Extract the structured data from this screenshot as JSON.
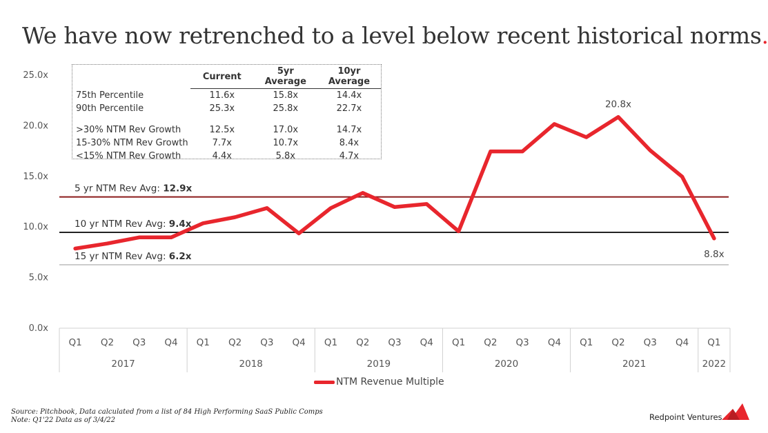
{
  "title": "We have now retrenched to a level below recent historical norms",
  "title_dot": ".",
  "stats_table": {
    "headers": [
      "Current",
      "5yr Average",
      "10yr Average"
    ],
    "rows": [
      {
        "label": "75th Percentile",
        "values": [
          "11.6x",
          "15.8x",
          "14.4x"
        ]
      },
      {
        "label": "90th Percentile",
        "values": [
          "25.3x",
          "25.8x",
          "22.7x"
        ]
      },
      {
        "label": ">30% NTM Rev Growth",
        "values": [
          "12.5x",
          "17.0x",
          "14.7x"
        ]
      },
      {
        "label": "15-30% NTM Rev Growth",
        "values": [
          "7.7x",
          "10.7x",
          "8.4x"
        ]
      },
      {
        "label": "<15% NTM Rev Growth",
        "values": [
          "4.4x",
          "5.8x",
          "4.7x"
        ]
      }
    ]
  },
  "chart_data": {
    "type": "line",
    "quarters": [
      "Q1",
      "Q2",
      "Q3",
      "Q4",
      "Q1",
      "Q2",
      "Q3",
      "Q4",
      "Q1",
      "Q2",
      "Q3",
      "Q4",
      "Q1",
      "Q2",
      "Q3",
      "Q4",
      "Q1",
      "Q2",
      "Q3",
      "Q4",
      "Q1"
    ],
    "years": [
      {
        "label": "2017",
        "count": 4
      },
      {
        "label": "2018",
        "count": 4
      },
      {
        "label": "2019",
        "count": 4
      },
      {
        "label": "2020",
        "count": 4
      },
      {
        "label": "2021",
        "count": 4
      },
      {
        "label": "2022",
        "count": 1
      }
    ],
    "series": [
      {
        "name": "NTM Revenue Multiple",
        "color": "#e8262d",
        "values": [
          7.8,
          8.3,
          8.9,
          8.9,
          10.3,
          10.9,
          11.8,
          9.3,
          11.8,
          13.3,
          11.9,
          12.2,
          9.5,
          17.4,
          17.4,
          20.1,
          18.8,
          20.8,
          17.5,
          14.9,
          8.8
        ]
      }
    ],
    "reference_lines": [
      {
        "label": "5 yr NTM Rev Avg: ",
        "value_label": "12.9x",
        "value": 12.9,
        "color": "#8b1a1a"
      },
      {
        "label": "10 yr NTM Rev Avg: ",
        "value_label": "9.4x",
        "value": 9.4,
        "color": "#222222"
      },
      {
        "label": "15 yr NTM Rev Avg: ",
        "value_label": "6.2x",
        "value": 6.2,
        "color": "#cccccc"
      }
    ],
    "annotations": [
      {
        "index": 17,
        "text": "20.8x"
      },
      {
        "index": 20,
        "text": "8.8x"
      }
    ],
    "yticks": [
      "0.0x",
      "5.0x",
      "10.0x",
      "15.0x",
      "20.0x",
      "25.0x"
    ],
    "ylim": [
      0,
      25
    ],
    "legend": "bottom-center"
  },
  "footnote": {
    "line1": "Source: Pitchbook, Data calculated from a list of 84 High Performing SaaS Public Comps",
    "line2": "Note: Q1'22 Data as of 3/4/22"
  },
  "brand": "Redpoint Ventures",
  "colors": {
    "accent": "#e8262d"
  }
}
